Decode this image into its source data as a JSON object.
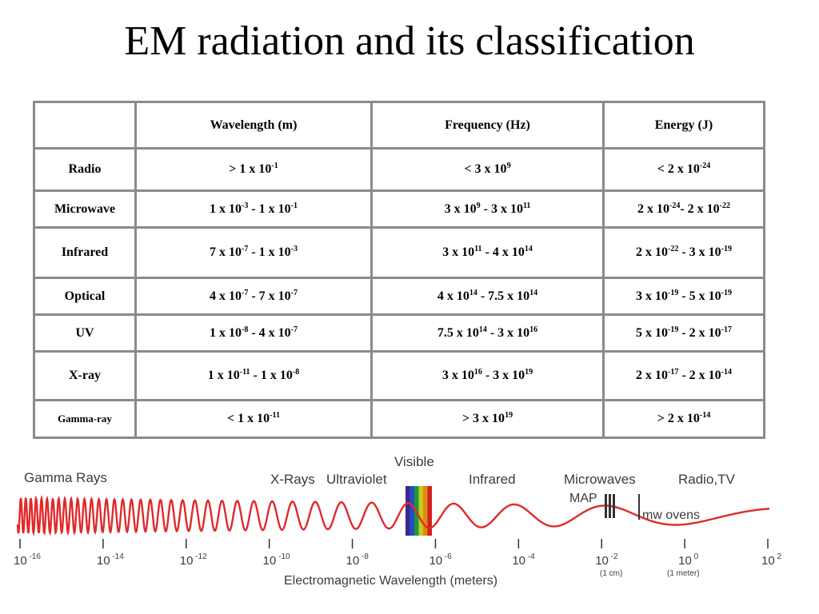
{
  "title": "EM radiation and its classification",
  "table": {
    "headers": [
      "",
      "Wavelength (m)",
      "Frequency (Hz)",
      "Energy (J)"
    ],
    "rows": [
      {
        "name": "Radio",
        "cells": [
          [
            [
              "> 1 x 10",
              ""
            ],
            [
              "-1",
              "s"
            ]
          ],
          [
            [
              "< 3 x 10",
              ""
            ],
            [
              "9",
              "s"
            ]
          ],
          [
            [
              "< 2 x 10",
              ""
            ],
            [
              "-24",
              "s"
            ]
          ]
        ]
      },
      {
        "name": "Microwave",
        "cells": [
          [
            [
              "1 x 10",
              ""
            ],
            [
              "-3",
              "s"
            ],
            [
              " - 1 x 10",
              ""
            ],
            [
              "-1",
              "s"
            ]
          ],
          [
            [
              "3 x 10",
              ""
            ],
            [
              "9",
              "s"
            ],
            [
              " - 3 x 10",
              ""
            ],
            [
              "11",
              "s"
            ]
          ],
          [
            [
              "2 x 10",
              ""
            ],
            [
              "-24",
              "s"
            ],
            [
              "- 2 x 10",
              ""
            ],
            [
              "-22",
              "s"
            ]
          ]
        ]
      },
      {
        "name": "Infrared",
        "cells": [
          [
            [
              "7 x 10",
              ""
            ],
            [
              "-7",
              "s"
            ],
            [
              " - 1 x 10",
              ""
            ],
            [
              "-3",
              "s"
            ]
          ],
          [
            [
              "3 x 10",
              ""
            ],
            [
              "11",
              "s"
            ],
            [
              " - 4 x 10",
              ""
            ],
            [
              "14",
              "s"
            ]
          ],
          [
            [
              "2 x 10",
              ""
            ],
            [
              "-22",
              "s"
            ],
            [
              " - 3 x 10",
              ""
            ],
            [
              "-19",
              "s"
            ]
          ]
        ]
      },
      {
        "name": "Optical",
        "cells": [
          [
            [
              "4 x 10",
              ""
            ],
            [
              "-7",
              "s"
            ],
            [
              " - 7 x 10",
              ""
            ],
            [
              "-7",
              "s"
            ]
          ],
          [
            [
              "4 x 10",
              ""
            ],
            [
              "14",
              "s"
            ],
            [
              " - 7.5 x 10",
              ""
            ],
            [
              "14",
              "s"
            ]
          ],
          [
            [
              "3 x 10",
              ""
            ],
            [
              "-19",
              "s"
            ],
            [
              " - 5 x 10",
              ""
            ],
            [
              "-19",
              "s"
            ]
          ]
        ]
      },
      {
        "name": "UV",
        "cells": [
          [
            [
              "1 x 10",
              ""
            ],
            [
              "-8",
              "s"
            ],
            [
              " - 4 x 10",
              ""
            ],
            [
              "-7",
              "s"
            ]
          ],
          [
            [
              "7.5 x 10",
              ""
            ],
            [
              "14",
              "s"
            ],
            [
              " - 3 x 10",
              ""
            ],
            [
              "16",
              "s"
            ]
          ],
          [
            [
              "5 x 10",
              ""
            ],
            [
              "-19",
              "s"
            ],
            [
              " - 2 x 10",
              ""
            ],
            [
              "-17",
              "s"
            ]
          ]
        ]
      },
      {
        "name": "X-ray",
        "cells": [
          [
            [
              "1 x 10",
              ""
            ],
            [
              "-11",
              "s"
            ],
            [
              " - 1 x 10",
              ""
            ],
            [
              "-8",
              "s"
            ]
          ],
          [
            [
              "3 x 10",
              ""
            ],
            [
              "16",
              "s"
            ],
            [
              " - 3 x 10",
              ""
            ],
            [
              "19",
              "s"
            ]
          ],
          [
            [
              "2 x 10",
              ""
            ],
            [
              "-17",
              "s"
            ],
            [
              " - 2 x 10",
              ""
            ],
            [
              "-14",
              "s"
            ]
          ]
        ]
      },
      {
        "name": "Gamma-ray",
        "cells": [
          [
            [
              "< 1 x 10",
              ""
            ],
            [
              "-11",
              "s"
            ]
          ],
          [
            [
              "> 3 x 10",
              ""
            ],
            [
              "19",
              "s"
            ]
          ],
          [
            [
              "> 2 x 10",
              ""
            ],
            [
              "-14",
              "s"
            ]
          ]
        ]
      }
    ]
  },
  "spectrum": {
    "band_labels": [
      "Gamma Rays",
      "X-Rays",
      "Ultraviolet",
      "Visible",
      "Infrared",
      "Microwaves",
      "Radio,TV"
    ],
    "marker_labels": [
      "MAP",
      "mw ovens"
    ],
    "ticks": [
      {
        "base": "10",
        "exp": "-16"
      },
      {
        "base": "10",
        "exp": "-14"
      },
      {
        "base": "10",
        "exp": "-12"
      },
      {
        "base": "10",
        "exp": "-10"
      },
      {
        "base": "10",
        "exp": "-8"
      },
      {
        "base": "10",
        "exp": "-6"
      },
      {
        "base": "10",
        "exp": "-4"
      },
      {
        "base": "10",
        "exp": "-2"
      },
      {
        "base": "10",
        "exp": "0"
      },
      {
        "base": "10",
        "exp": "2"
      }
    ],
    "tick_notes": [
      "(1 cm)",
      "(1 meter)"
    ],
    "axis_label": "Electromagnetic Wavelength (meters)",
    "wave_color": "#e02a2a",
    "visible_colors": [
      "#3a2a8a",
      "#2a48c8",
      "#1a9a3a",
      "#c8c820",
      "#e08a10",
      "#d02020"
    ]
  }
}
